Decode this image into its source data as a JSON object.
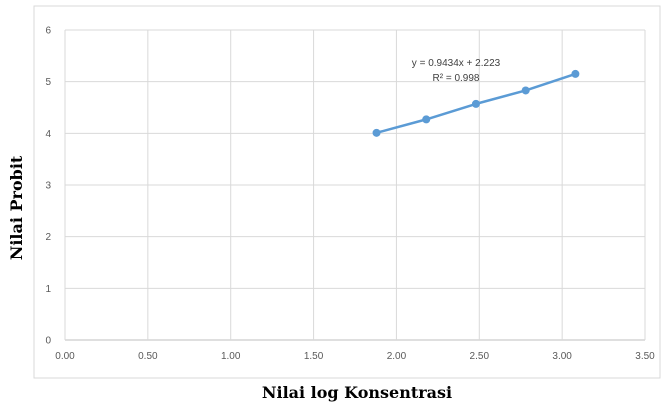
{
  "chart_data": {
    "type": "scatter",
    "title": "",
    "xlabel": "Nilai log Konsentrasi",
    "ylabel": "Nilai Probit",
    "xlim": [
      0,
      3.5
    ],
    "ylim": [
      0,
      6
    ],
    "x_ticks": [
      "0.00",
      "0.50",
      "1.00",
      "1.50",
      "2.00",
      "2.50",
      "3.00",
      "3.50"
    ],
    "y_ticks": [
      "0",
      "1",
      "2",
      "3",
      "4",
      "5",
      "6"
    ],
    "grid": true,
    "series": [
      {
        "x": [
          1.88,
          2.18,
          2.48,
          2.78,
          3.08
        ],
        "y": [
          4.01,
          4.27,
          4.57,
          4.83,
          5.15
        ],
        "color": "#5b9bd5",
        "line": true
      }
    ],
    "annotations": {
      "equation": "y = 0.9434x + 2.223",
      "r_squared": "R² = 0.998"
    }
  }
}
